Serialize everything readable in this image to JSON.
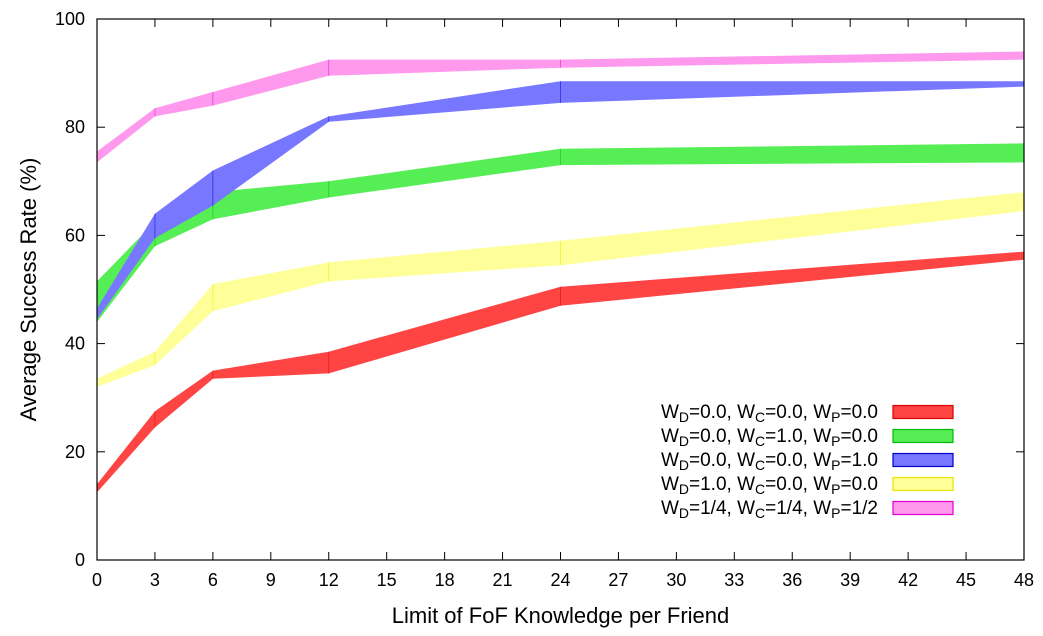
{
  "chart_data": {
    "type": "area",
    "title": "",
    "xlabel": "Limit of FoF Knowledge per Friend",
    "ylabel": "Average Success Rate (%)",
    "xlim": [
      0,
      48
    ],
    "ylim": [
      0,
      100
    ],
    "xticks": [
      0,
      3,
      6,
      9,
      12,
      15,
      18,
      21,
      24,
      27,
      30,
      33,
      36,
      39,
      42,
      45,
      48
    ],
    "yticks": [
      0,
      20,
      40,
      60,
      80,
      100
    ],
    "grid": false,
    "legend_position": "lower-right",
    "x": [
      0,
      3,
      6,
      12,
      24,
      48
    ],
    "series": [
      {
        "key": "s1",
        "color": "#ff4444",
        "stroke": "#dd0000",
        "label": [
          {
            "t": "W"
          },
          {
            "t": "D",
            "sub": true
          },
          {
            "t": "=0.0, W"
          },
          {
            "t": "C",
            "sub": true
          },
          {
            "t": "=0.0, W"
          },
          {
            "t": "P",
            "sub": true
          },
          {
            "t": "=0.0"
          }
        ],
        "lower": [
          12.5,
          24.5,
          33.5,
          34.5,
          47,
          55.5
        ],
        "upper": [
          14,
          27.5,
          35,
          38.5,
          50.5,
          57
        ]
      },
      {
        "key": "s2",
        "color": "#55ee55",
        "stroke": "#00bb00",
        "label": [
          {
            "t": "W"
          },
          {
            "t": "D",
            "sub": true
          },
          {
            "t": "=0.0, W"
          },
          {
            "t": "C",
            "sub": true
          },
          {
            "t": "=1.0, W"
          },
          {
            "t": "P",
            "sub": true
          },
          {
            "t": "=0.0"
          }
        ],
        "lower": [
          44,
          58,
          63,
          67,
          73,
          73.5
        ],
        "upper": [
          51.5,
          62.5,
          68,
          70,
          76,
          77
        ]
      },
      {
        "key": "s3",
        "color": "#7777ff",
        "stroke": "#0000cc",
        "label": [
          {
            "t": "W"
          },
          {
            "t": "D",
            "sub": true
          },
          {
            "t": "=0.0, W"
          },
          {
            "t": "C",
            "sub": true
          },
          {
            "t": "=0.0, W"
          },
          {
            "t": "P",
            "sub": true
          },
          {
            "t": "=1.0"
          }
        ],
        "lower": [
          44.5,
          59.5,
          65.5,
          81,
          84.5,
          87.5
        ],
        "upper": [
          46.5,
          64,
          72,
          82,
          88.5,
          88.5
        ]
      },
      {
        "key": "s4",
        "color": "#ffff99",
        "stroke": "#e6e600",
        "label": [
          {
            "t": "W"
          },
          {
            "t": "D",
            "sub": true
          },
          {
            "t": "=1.0, W"
          },
          {
            "t": "C",
            "sub": true
          },
          {
            "t": "=0.0, W"
          },
          {
            "t": "P",
            "sub": true
          },
          {
            "t": "=0.0"
          }
        ],
        "lower": [
          32,
          36,
          46,
          51.5,
          54.5,
          64.5
        ],
        "upper": [
          33.5,
          38.5,
          51,
          55,
          59,
          68
        ]
      },
      {
        "key": "s5",
        "color": "#ff99ee",
        "stroke": "#dd00cc",
        "label": [
          {
            "t": "W"
          },
          {
            "t": "D",
            "sub": true
          },
          {
            "t": "=1/4, W"
          },
          {
            "t": "C",
            "sub": true
          },
          {
            "t": "=1/4, W"
          },
          {
            "t": "P",
            "sub": true
          },
          {
            "t": "=1/2"
          }
        ],
        "lower": [
          73.5,
          82,
          84,
          89.5,
          91,
          92.5
        ],
        "upper": [
          75.5,
          83.5,
          86.5,
          92.5,
          92.5,
          94
        ]
      }
    ]
  }
}
